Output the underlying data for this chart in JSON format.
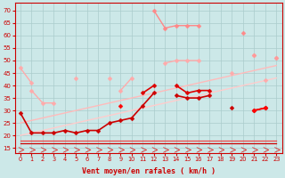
{
  "background_color": "#cce8e8",
  "grid_color": "#aacccc",
  "x_labels": [
    0,
    1,
    2,
    3,
    4,
    5,
    6,
    7,
    8,
    9,
    10,
    11,
    12,
    13,
    14,
    15,
    16,
    17,
    18,
    19,
    20,
    21,
    22,
    23
  ],
  "xlabel": "Vent moyen/en rafales ( km/h )",
  "ylabel_ticks": [
    15,
    20,
    25,
    30,
    35,
    40,
    45,
    50,
    55,
    60,
    65,
    70
  ],
  "ylim": [
    13,
    73
  ],
  "xlim": [
    -0.5,
    23.5
  ],
  "series": [
    {
      "name": "lightest_pink_top",
      "color": "#ffaaaa",
      "lw": 1.0,
      "marker": "D",
      "ms": 2.5,
      "y": [
        47,
        41,
        null,
        null,
        null,
        null,
        null,
        null,
        null,
        38,
        43,
        null,
        null,
        49,
        50,
        50,
        50,
        null,
        null,
        null,
        null,
        52,
        null,
        51
      ]
    },
    {
      "name": "light_pink_gust",
      "color": "#ff8888",
      "lw": 1.0,
      "marker": "D",
      "ms": 2.5,
      "y": [
        null,
        null,
        null,
        null,
        null,
        null,
        null,
        null,
        null,
        null,
        null,
        null,
        70,
        63,
        64,
        64,
        64,
        null,
        null,
        null,
        61,
        null,
        null,
        null
      ]
    },
    {
      "name": "light_pink_wide",
      "color": "#ffaaaa",
      "lw": 1.0,
      "marker": "D",
      "ms": 2.5,
      "y": [
        null,
        38,
        33,
        33,
        null,
        43,
        null,
        null,
        43,
        null,
        null,
        null,
        null,
        null,
        null,
        null,
        null,
        null,
        null,
        45,
        null,
        null,
        42,
        null
      ]
    },
    {
      "name": "medium_pink_line",
      "color": "#ff9999",
      "lw": 1.0,
      "marker": "D",
      "ms": 2.5,
      "y": [
        null,
        null,
        null,
        null,
        null,
        null,
        null,
        null,
        null,
        null,
        null,
        null,
        null,
        null,
        null,
        null,
        null,
        null,
        null,
        null,
        null,
        52,
        null,
        51
      ]
    },
    {
      "name": "dark_red_gust_line",
      "color": "#dd0000",
      "lw": 1.2,
      "marker": "D",
      "ms": 2.5,
      "y": [
        null,
        null,
        null,
        null,
        null,
        null,
        null,
        null,
        null,
        null,
        null,
        37,
        40,
        null,
        40,
        37,
        38,
        38,
        null,
        null,
        null,
        null,
        null,
        null
      ]
    },
    {
      "name": "dark_red_mean_line",
      "color": "#cc0000",
      "lw": 1.2,
      "marker": "D",
      "ms": 2.5,
      "y": [
        29,
        21,
        21,
        21,
        22,
        21,
        22,
        22,
        25,
        26,
        27,
        32,
        37,
        null,
        36,
        35,
        35,
        36,
        null,
        31,
        null,
        30,
        31,
        null
      ]
    },
    {
      "name": "bright_red_spike",
      "color": "#ff0000",
      "lw": 1.2,
      "marker": "D",
      "ms": 2.5,
      "y": [
        null,
        null,
        null,
        null,
        null,
        null,
        null,
        null,
        null,
        32,
        null,
        null,
        null,
        null,
        null,
        null,
        null,
        null,
        null,
        null,
        null,
        30,
        31,
        null
      ]
    },
    {
      "name": "flat_line_17",
      "color": "#cc0000",
      "lw": 0.9,
      "marker": null,
      "ms": 0,
      "y": [
        17,
        17,
        17,
        17,
        17,
        17,
        17,
        17,
        17,
        17,
        17,
        17,
        17,
        17,
        17,
        17,
        17,
        17,
        17,
        17,
        17,
        17,
        17,
        17
      ]
    },
    {
      "name": "flat_line_18",
      "color": "#ee4444",
      "lw": 0.9,
      "marker": null,
      "ms": 0,
      "y": [
        18,
        18,
        18,
        18,
        18,
        18,
        18,
        18,
        18,
        18,
        18,
        18,
        18,
        18,
        18,
        18,
        18,
        18,
        18,
        18,
        18,
        18,
        18,
        18
      ]
    },
    {
      "name": "rising_light_line",
      "color": "#ffcccc",
      "lw": 1.0,
      "marker": null,
      "ms": 0,
      "y": [
        20,
        21,
        22,
        23,
        24,
        25,
        26,
        27,
        28,
        29,
        30,
        31,
        32,
        33,
        34,
        35,
        36,
        37,
        38,
        39,
        40,
        41,
        42,
        43
      ]
    },
    {
      "name": "rising_pink_line2",
      "color": "#ffbbbb",
      "lw": 1.0,
      "marker": null,
      "ms": 0,
      "y": [
        25,
        26,
        27,
        28,
        29,
        30,
        31,
        32,
        33,
        34,
        35,
        36,
        37,
        38,
        39,
        40,
        41,
        42,
        43,
        44,
        45,
        46,
        47,
        48
      ]
    }
  ]
}
